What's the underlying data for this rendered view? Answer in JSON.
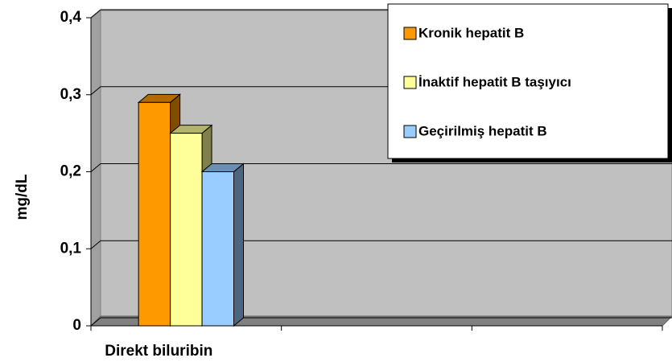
{
  "chart_data": {
    "type": "bar",
    "y_label": "mg/dL",
    "categories": [
      "Direkt biluribin",
      null,
      null
    ],
    "series": [
      {
        "name": "Kronik hepatit B",
        "color": "#ff9900",
        "values": [
          0.29,
          null,
          null
        ]
      },
      {
        "name": "İnaktif hepatit B taşıyıcı",
        "color": "#ffff99",
        "values": [
          0.25,
          null,
          null
        ]
      },
      {
        "name": "Geçirilmiş hepatit B",
        "color": "#99ccff",
        "values": [
          0.2,
          null,
          null
        ]
      }
    ],
    "ylim": [
      0,
      0.4
    ],
    "yticks": [
      0,
      {
        "value": 0.1,
        "label": "0,1"
      },
      {
        "value": 0.2,
        "label": "0,2"
      },
      {
        "value": 0.3,
        "label": "0,3"
      },
      {
        "value": 0.4,
        "label": "0,4"
      }
    ],
    "grid": true,
    "legend": "top-right"
  }
}
